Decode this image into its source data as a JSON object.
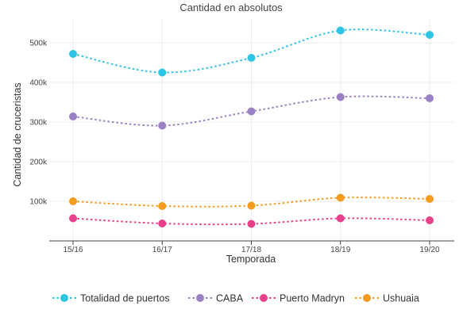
{
  "chart_data": {
    "type": "line",
    "title": "Cantidad en absolutos",
    "xlabel": "Temporada",
    "ylabel": "Cantidad de cruceristas",
    "categories": [
      "15/16",
      "16/17",
      "17/18",
      "18/19",
      "19/20"
    ],
    "y_ticks": [
      100000,
      200000,
      300000,
      400000,
      500000
    ],
    "y_tick_labels": [
      "100k",
      "200k",
      "300k",
      "400k",
      "500k"
    ],
    "ylim": [
      0,
      560000
    ],
    "grid": true,
    "legend_position": "bottom",
    "line_style": "dotted, smoothed",
    "series": [
      {
        "name": "Totalidad de puertos",
        "color": "#2ec4e6",
        "values": [
          472000,
          425000,
          462000,
          531000,
          520000
        ]
      },
      {
        "name": "CABA",
        "color": "#9b80c4",
        "values": [
          314000,
          291000,
          327000,
          363000,
          360000
        ]
      },
      {
        "name": "Puerto Madryn",
        "color": "#e8408a",
        "values": [
          57000,
          44000,
          43000,
          57000,
          52000
        ]
      },
      {
        "name": "Ushuaia",
        "color": "#f39c1f",
        "values": [
          100000,
          88000,
          89000,
          109000,
          106000
        ]
      }
    ]
  }
}
